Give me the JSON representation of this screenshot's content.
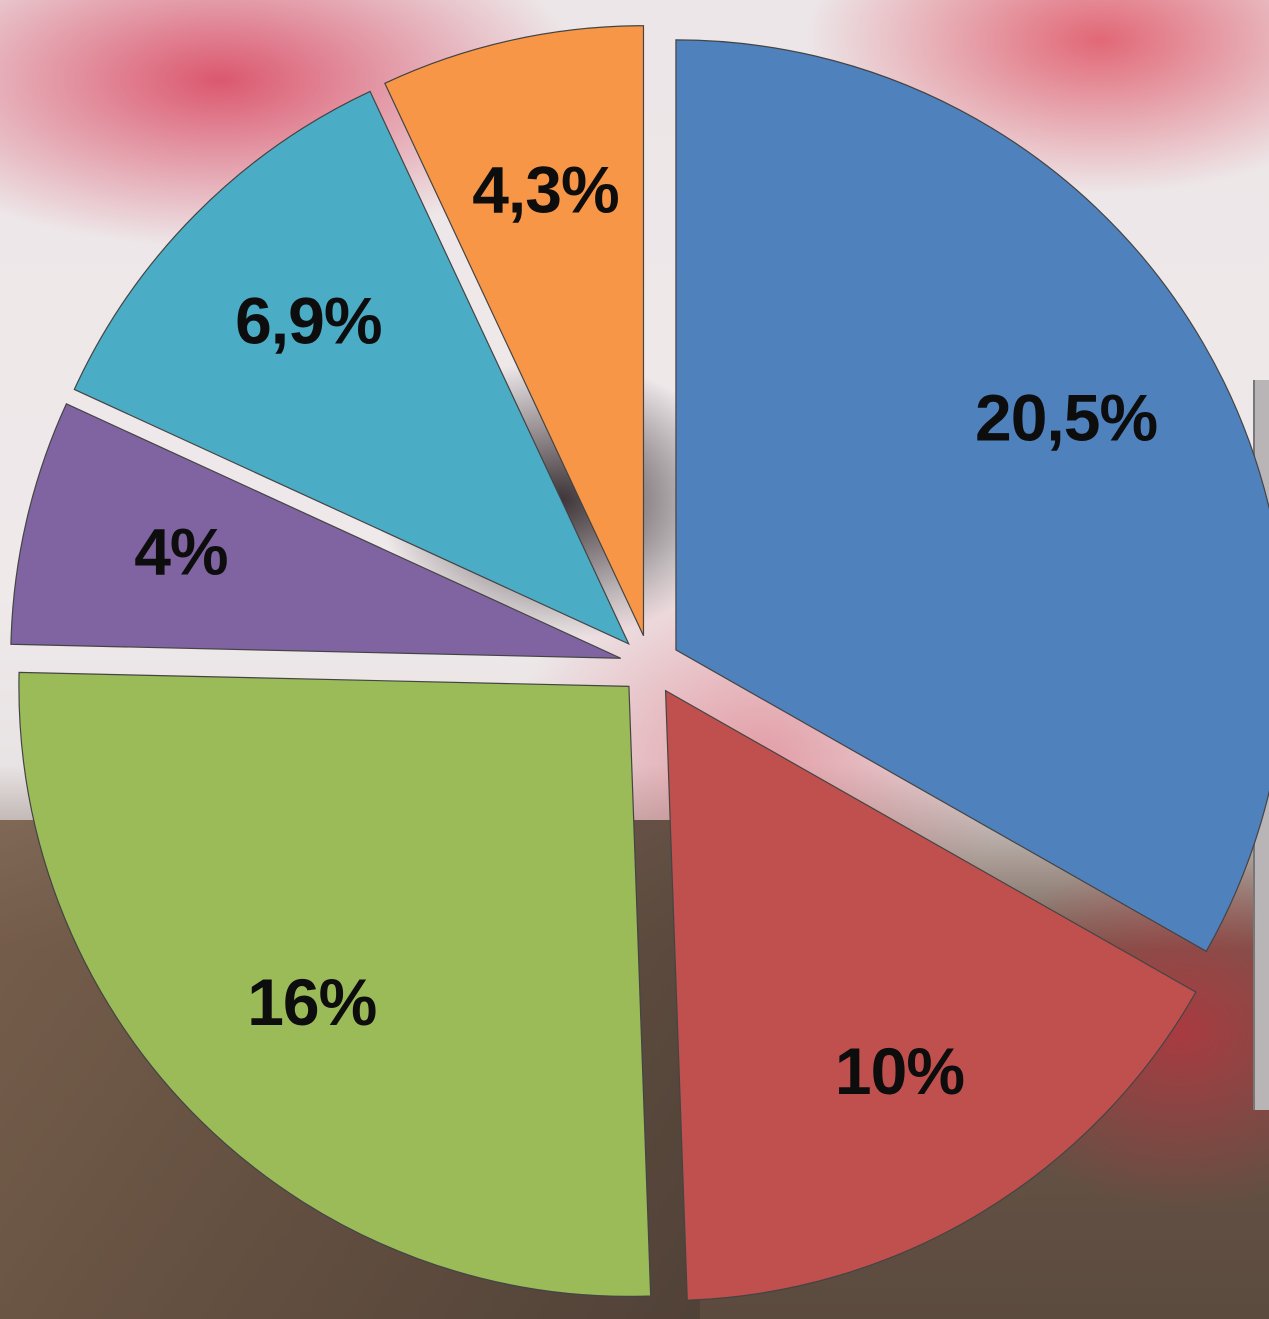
{
  "chart_data": {
    "type": "pie",
    "exploded": true,
    "start": "12 o'clock",
    "direction": "clockwise",
    "slices": [
      {
        "label": "20,5%",
        "value": 20.5,
        "color": "#4f81bd"
      },
      {
        "label": "10%",
        "value": 10,
        "color": "#c0504d"
      },
      {
        "label": "16%",
        "value": 16,
        "color": "#9bbb59"
      },
      {
        "label": "4%",
        "value": 4,
        "color": "#8064a2"
      },
      {
        "label": "6,9%",
        "value": 6.9,
        "color": "#4bacc6"
      },
      {
        "label": "4,3%",
        "value": 4.3,
        "color": "#f79646"
      }
    ]
  }
}
